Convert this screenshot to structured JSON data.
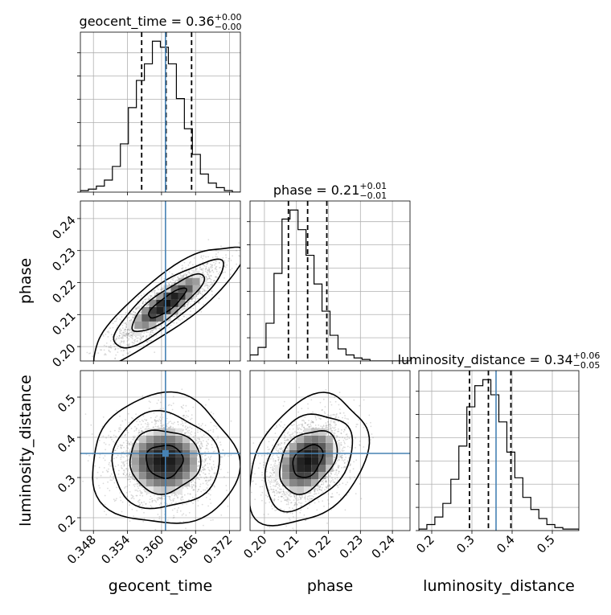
{
  "chart_data": {
    "type": "corner",
    "parameters": [
      "geocent_time",
      "phase",
      "luminosity_distance"
    ],
    "axis_labels": {
      "geocent_time": "geocent_time",
      "phase": "phase",
      "luminosity_distance": "luminosity_distance"
    },
    "titles": [
      {
        "param": "geocent_time",
        "prefix": "geocent_time = 0.36",
        "plus": "+0.00",
        "minus": "−0.00"
      },
      {
        "param": "phase",
        "prefix": "phase = 0.21",
        "plus": "+0.01",
        "minus": "−0.01"
      },
      {
        "param": "luminosity_distance",
        "prefix": "luminosity_distance = 0.34",
        "plus": "+0.06",
        "minus": "−0.05"
      }
    ],
    "ranges": {
      "geocent_time": [
        0.3457,
        0.3739
      ],
      "phase": [
        0.1955,
        0.2455
      ],
      "luminosity_distance": [
        0.168,
        0.566
      ]
    },
    "ticks": {
      "geocent_time": [
        0.348,
        0.354,
        0.36,
        0.366,
        0.372
      ],
      "phase": [
        0.2,
        0.21,
        0.22,
        0.23,
        0.24
      ],
      "luminosity_distance": [
        0.2,
        0.3,
        0.4,
        0.5
      ]
    },
    "tick_labels": {
      "geocent_time": [
        "0.348",
        "0.354",
        "0.360",
        "0.366",
        "0.372"
      ],
      "phase": [
        "0.20",
        "0.21",
        "0.22",
        "0.23",
        "0.24"
      ],
      "luminosity_distance": [
        "0.2",
        "0.3",
        "0.4",
        "0.5"
      ]
    },
    "truths": {
      "geocent_time": 0.3607,
      "luminosity_distance": 0.36
    },
    "quantiles": {
      "geocent_time": [
        0.3565,
        0.3608,
        0.3653
      ],
      "phase": [
        0.2075,
        0.2135,
        0.2195
      ],
      "luminosity_distance": [
        0.294,
        0.341,
        0.397
      ]
    },
    "histograms": {
      "geocent_time": {
        "edges_start": 0.3457,
        "bin_width": 0.00141,
        "counts": [
          1,
          2,
          4,
          8,
          17,
          32,
          56,
          74,
          85,
          100,
          96,
          85,
          62,
          42,
          25,
          12,
          6,
          3,
          1,
          0
        ]
      },
      "phase": {
        "edges_start": 0.1955,
        "bin_width": 0.0025,
        "counts": [
          4,
          9,
          25,
          58,
          94,
          100,
          87,
          70,
          51,
          33,
          17,
          8,
          4,
          2,
          1,
          0,
          0,
          0,
          0,
          0
        ]
      },
      "luminosity_distance": {
        "edges_start": 0.168,
        "bin_width": 0.0199,
        "counts": [
          1,
          4,
          9,
          18,
          34,
          56,
          82,
          96,
          100,
          90,
          72,
          52,
          35,
          22,
          14,
          8,
          4,
          2,
          1,
          1
        ]
      }
    },
    "correlations": {
      "geocent_time|phase": {
        "cx": 0.361,
        "cy": 0.2135,
        "sx": 0.0044,
        "sy": 0.0062,
        "rho": 0.85
      },
      "geocent_time|luminosity_distance": {
        "cx": 0.3605,
        "cy": 0.341,
        "sx": 0.0043,
        "sy": 0.054,
        "rho": 0.0
      },
      "phase|luminosity_distance": {
        "cx": 0.2135,
        "cy": 0.341,
        "sx": 0.0062,
        "sy": 0.054,
        "rho": 0.35
      }
    },
    "colors": {
      "truth": "#4682b4",
      "contour": "#000000",
      "scatter": "#7f7f7f"
    },
    "grid": true
  }
}
